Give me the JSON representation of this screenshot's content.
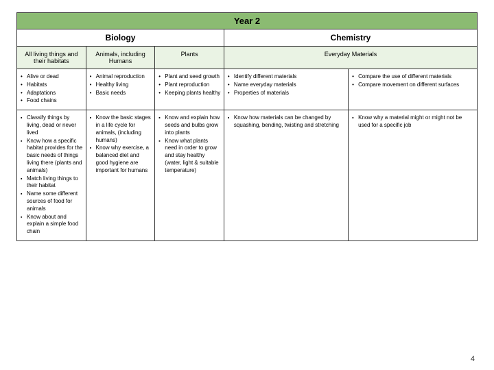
{
  "year_title": "Year 2",
  "subjects": {
    "biology": "Biology",
    "chemistry": "Chemistry"
  },
  "topics": {
    "c1": "All living things and their habitats",
    "c2": "Animals, including Humans",
    "c3": "Plants",
    "c4": "Everyday Materials"
  },
  "row1": {
    "c1": [
      "Alive or dead",
      "Habitats",
      "Adaptations",
      "Food chains"
    ],
    "c2": [
      "Animal reproduction",
      "Healthy living",
      "Basic needs"
    ],
    "c3": [
      "Plant and seed growth",
      "Plant reproduction",
      "Keeping plants healthy"
    ],
    "c4": [
      "Identify different materials",
      "Name everyday materials",
      "Properties of materials"
    ],
    "c5": [
      "Compare the use of different materials",
      "Compare movement on different surfaces"
    ]
  },
  "row2": {
    "c1": [
      "Classify things by living, dead or never lived",
      "Know how a specific habitat provides for the basic needs of things living there (plants and animals)",
      "Match living things to their habitat",
      "Name some different sources of food for animals",
      "Know about and explain a simple food chain"
    ],
    "c2": [
      "Know the basic stages in a life cycle for animals, (including humans)",
      "Know why exercise, a balanced diet and good hygiene are important for humans"
    ],
    "c3": [
      "Know and explain how seeds and bulbs grow into plants",
      "Know what plants need in order to grow and stay healthy (water, light & suitable temperature)"
    ],
    "c4": [
      "Know how materials can be changed by squashing, bending, twisting and stretching"
    ],
    "c5": [
      "Know why a material might or might not be used for a specific job"
    ]
  },
  "page_number": "4",
  "colors": {
    "header_bg": "#8bbb72",
    "topic_bg": "#eaf3e4",
    "border": "#333333"
  },
  "col_widths": [
    "15%",
    "15%",
    "15%",
    "27%",
    "28%"
  ]
}
